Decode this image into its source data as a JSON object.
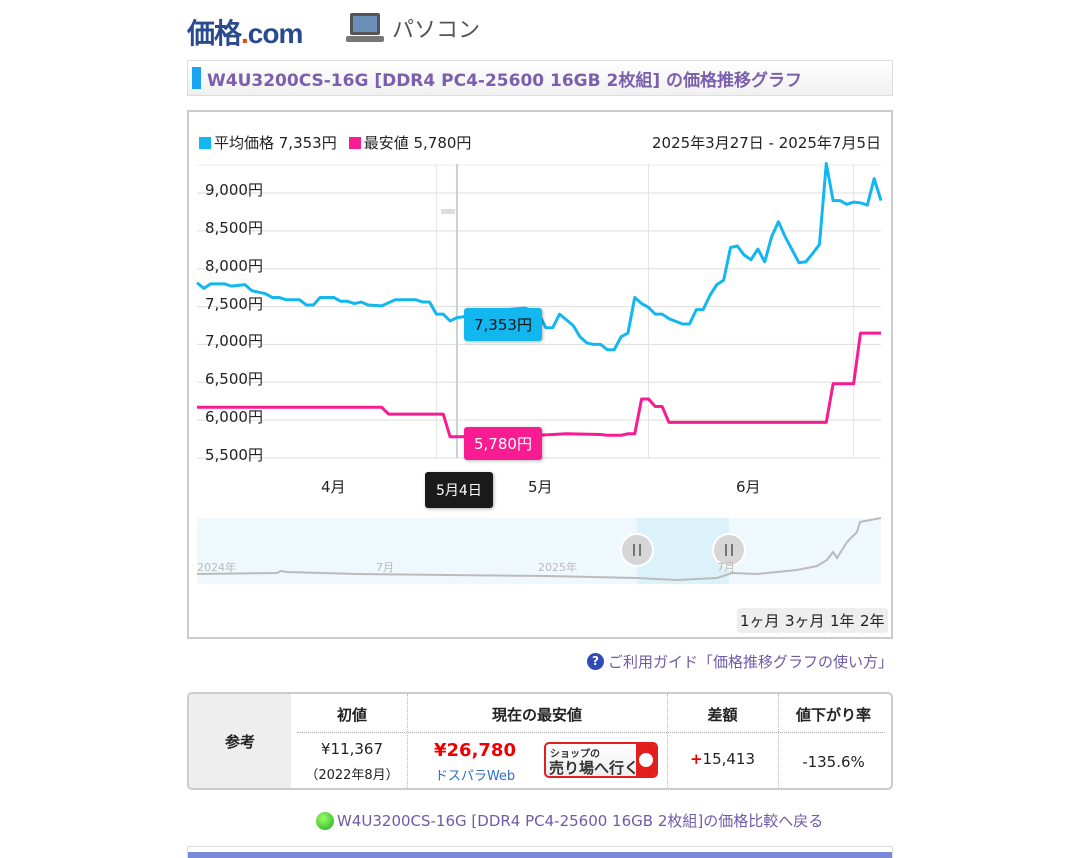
{
  "header": {
    "logo_text": "価格.com",
    "section": "パソコン"
  },
  "title": "W4U3200CS-16G [DDR4 PC4-25600 16GB 2枚組] の価格推移グラフ",
  "chart": {
    "legend": [
      {
        "label": "平均価格 7,353円",
        "color": "#12b7f0"
      },
      {
        "label": "最安値 5,780円",
        "color": "#f91b91"
      }
    ],
    "date_range": "2025年3月27日 - 2025年7月5日",
    "tooltip_date": "5月4日",
    "tooltip_avg": "7,353円",
    "tooltip_min": "5,780円",
    "navigator_labels": [
      "2024年",
      "7月",
      "2025年",
      "7月"
    ],
    "range_buttons": [
      "1ヶ月",
      "3ヶ月",
      "1年",
      "2年"
    ]
  },
  "chart_data": {
    "type": "line",
    "xrange": [
      "2025-03-27",
      "2025-07-05"
    ],
    "ylim": [
      5500,
      9500
    ],
    "y_ticks": [
      "5,500円",
      "6,000円",
      "6,500円",
      "7,000円",
      "7,500円",
      "8,000円",
      "8,500円",
      "9,000円"
    ],
    "y_tick_values": [
      5500,
      6000,
      6500,
      7000,
      7500,
      8000,
      8500,
      9000
    ],
    "x_ticks": [
      "4月",
      "5月",
      "6月"
    ],
    "grid": true,
    "legend_placement": "top-left",
    "series": [
      {
        "name": "平均価格",
        "color": "#12b7f0",
        "points": [
          [
            "2025-03-27",
            7815
          ],
          [
            "2025-03-28",
            7740
          ],
          [
            "2025-03-29",
            7800
          ],
          [
            "2025-03-31",
            7800
          ],
          [
            "2025-04-01",
            7770
          ],
          [
            "2025-04-03",
            7790
          ],
          [
            "2025-04-04",
            7710
          ],
          [
            "2025-04-06",
            7670
          ],
          [
            "2025-04-07",
            7620
          ],
          [
            "2025-04-08",
            7620
          ],
          [
            "2025-04-09",
            7590
          ],
          [
            "2025-04-11",
            7590
          ],
          [
            "2025-04-12",
            7520
          ],
          [
            "2025-04-13",
            7520
          ],
          [
            "2025-04-14",
            7620
          ],
          [
            "2025-04-16",
            7620
          ],
          [
            "2025-04-17",
            7570
          ],
          [
            "2025-04-18",
            7570
          ],
          [
            "2025-04-19",
            7540
          ],
          [
            "2025-04-20",
            7560
          ],
          [
            "2025-04-21",
            7520
          ],
          [
            "2025-04-23",
            7510
          ],
          [
            "2025-04-25",
            7590
          ],
          [
            "2025-04-28",
            7590
          ],
          [
            "2025-04-29",
            7560
          ],
          [
            "2025-04-30",
            7560
          ],
          [
            "2025-05-01",
            7400
          ],
          [
            "2025-05-02",
            7400
          ],
          [
            "2025-05-03",
            7310
          ],
          [
            "2025-05-04",
            7353
          ],
          [
            "2025-05-06",
            7380
          ],
          [
            "2025-05-10",
            7450
          ],
          [
            "2025-05-14",
            7480
          ],
          [
            "2025-05-16",
            7400
          ],
          [
            "2025-05-17",
            7220
          ],
          [
            "2025-05-18",
            7220
          ],
          [
            "2025-05-19",
            7400
          ],
          [
            "2025-05-21",
            7250
          ],
          [
            "2025-05-22",
            7100
          ],
          [
            "2025-05-23",
            7020
          ],
          [
            "2025-05-24",
            7000
          ],
          [
            "2025-05-25",
            7000
          ],
          [
            "2025-05-26",
            6930
          ],
          [
            "2025-05-27",
            6930
          ],
          [
            "2025-05-28",
            7100
          ],
          [
            "2025-05-29",
            7150
          ],
          [
            "2025-05-30",
            7620
          ],
          [
            "2025-05-31",
            7540
          ],
          [
            "2025-06-01",
            7490
          ],
          [
            "2025-06-02",
            7400
          ],
          [
            "2025-06-03",
            7400
          ],
          [
            "2025-06-04",
            7340
          ],
          [
            "2025-06-06",
            7270
          ],
          [
            "2025-06-07",
            7270
          ],
          [
            "2025-06-08",
            7460
          ],
          [
            "2025-06-09",
            7460
          ],
          [
            "2025-06-10",
            7650
          ],
          [
            "2025-06-11",
            7790
          ],
          [
            "2025-06-12",
            7850
          ],
          [
            "2025-06-13",
            8280
          ],
          [
            "2025-06-14",
            8300
          ],
          [
            "2025-06-15",
            8180
          ],
          [
            "2025-06-16",
            8120
          ],
          [
            "2025-06-17",
            8260
          ],
          [
            "2025-06-18",
            8090
          ],
          [
            "2025-06-19",
            8420
          ],
          [
            "2025-06-20",
            8620
          ],
          [
            "2025-06-21",
            8420
          ],
          [
            "2025-06-23",
            8080
          ],
          [
            "2025-06-24",
            8090
          ],
          [
            "2025-06-25",
            8200
          ],
          [
            "2025-06-26",
            8320
          ],
          [
            "2025-06-27",
            9390
          ],
          [
            "2025-06-28",
            8900
          ],
          [
            "2025-06-29",
            8900
          ],
          [
            "2025-06-30",
            8850
          ],
          [
            "2025-07-01",
            8880
          ],
          [
            "2025-07-02",
            8870
          ],
          [
            "2025-07-03",
            8840
          ],
          [
            "2025-07-04",
            9190
          ],
          [
            "2025-07-05",
            8900
          ]
        ]
      },
      {
        "name": "最安値",
        "color": "#f91b91",
        "points": [
          [
            "2025-03-27",
            6170
          ],
          [
            "2025-04-23",
            6170
          ],
          [
            "2025-04-24",
            6080
          ],
          [
            "2025-05-02",
            6080
          ],
          [
            "2025-05-03",
            5780
          ],
          [
            "2025-05-04",
            5780
          ],
          [
            "2025-05-16",
            5800
          ],
          [
            "2025-05-20",
            5820
          ],
          [
            "2025-05-25",
            5810
          ],
          [
            "2025-05-26",
            5800
          ],
          [
            "2025-05-28",
            5800
          ],
          [
            "2025-05-29",
            5820
          ],
          [
            "2025-05-30",
            5820
          ],
          [
            "2025-05-31",
            6280
          ],
          [
            "2025-06-01",
            6280
          ],
          [
            "2025-06-02",
            6180
          ],
          [
            "2025-06-03",
            6180
          ],
          [
            "2025-06-04",
            5970
          ],
          [
            "2025-06-27",
            5970
          ],
          [
            "2025-06-28",
            6480
          ],
          [
            "2025-07-01",
            6480
          ],
          [
            "2025-07-02",
            7150
          ],
          [
            "2025-07-05",
            7150
          ]
        ]
      }
    ]
  },
  "guide_link": "ご利用ガイド「価格推移グラフの使い方」",
  "reference": {
    "side_label": "参考",
    "headers": [
      "初値",
      "現在の最安値",
      "差額",
      "値下がり率"
    ],
    "initial_price": "¥11,367",
    "initial_date": "（2022年8月）",
    "current_price": "¥26,780",
    "shop": "ドスパラWeb",
    "shop_button_top": "ショップの",
    "shop_button_main": "売り場へ行く",
    "diff_sign": "+",
    "diff": "15,413",
    "rate": "-135.6%"
  },
  "back_link": "W4U3200CS-16G [DDR4 PC4-25600 16GB 2枚組]の価格比較へ戻る"
}
